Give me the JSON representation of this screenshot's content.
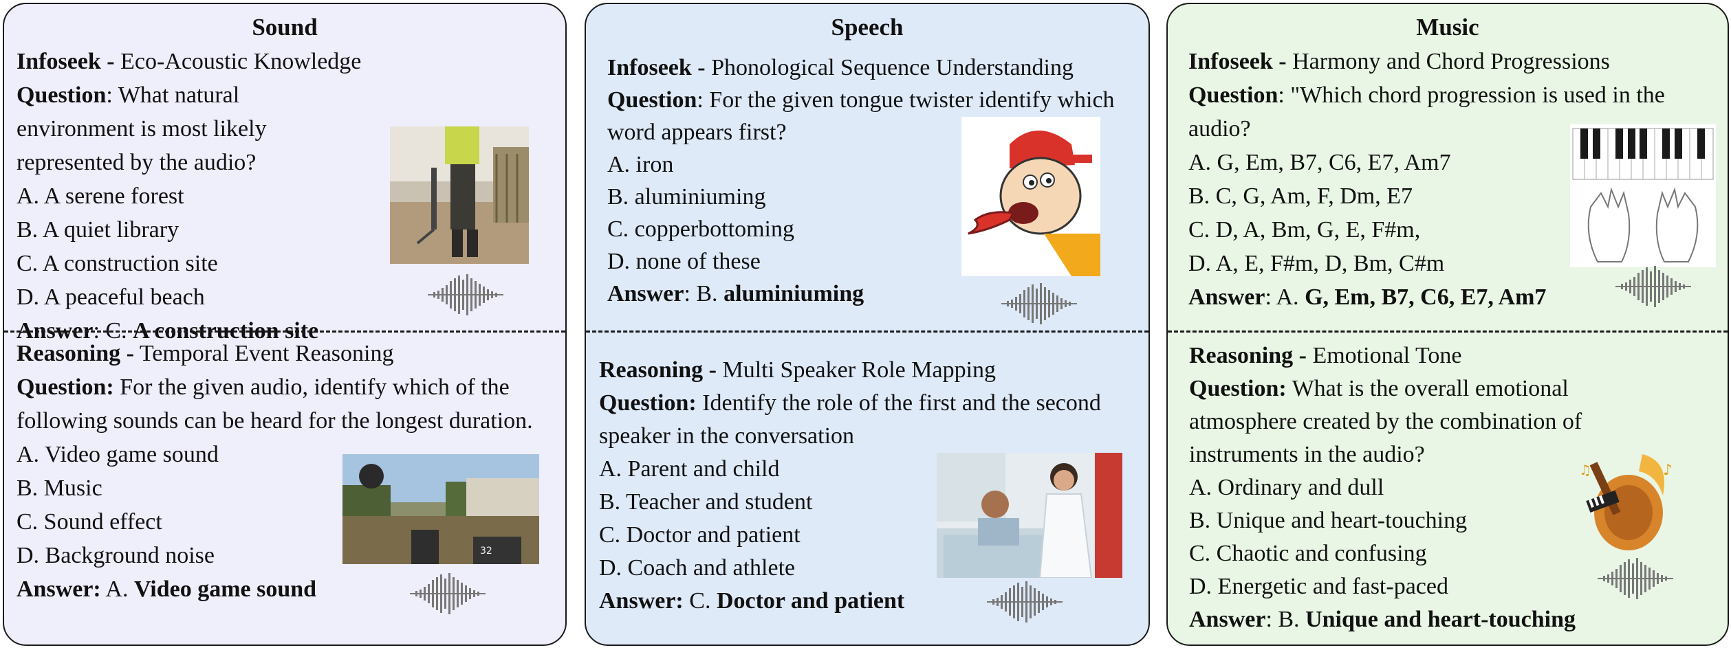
{
  "panels": [
    {
      "title": "Sound",
      "top": {
        "category": "Infoseek -",
        "subtitle": " Eco-Acoustic Knowledge",
        "question_label": "Question",
        "question_text": ": What natural environment is most likely represented by the audio?",
        "options": [
          "A. A serene forest",
          "B. A quiet library",
          "C. A construction site",
          "D. A peaceful beach"
        ],
        "answer_label": "Answer",
        "answer_prefix": ": C. ",
        "answer_value": "A construction site",
        "image": "construction-worker-jackhammer-photo"
      },
      "bottom": {
        "category": "Reasoning -",
        "subtitle": " Temporal Event Reasoning",
        "question_label": "Question:",
        "question_text": " For the given audio, identify which of the following sounds can be heard for the longest duration.",
        "options": [
          "A. Video game sound",
          "B. Music",
          "C. Sound effect",
          "D. Background noise"
        ],
        "answer_label": "Answer:",
        "answer_prefix": " A. ",
        "answer_value": "Video game sound",
        "image": "video-game-screenshot"
      }
    },
    {
      "title": "Speech",
      "top": {
        "category": "Infoseek -",
        "subtitle": " Phonological Sequence Understanding",
        "question_label": "Question",
        "question_text": ": For the given tongue twister identify which word appears first?",
        "options": [
          "A. iron",
          "B. aluminiuming",
          "C. copperbottoming",
          "D. none of these"
        ],
        "answer_label": "Answer",
        "answer_prefix": ": B. ",
        "answer_value": "aluminiuming",
        "image": "cartoon-tongue-twister"
      },
      "bottom": {
        "category": "Reasoning -",
        "subtitle": " Multi Speaker Role Mapping",
        "question_label": "Question:",
        "question_text": " Identify the role of the first and the second speaker in the conversation",
        "options": [
          "A. Parent and child",
          "B. Teacher and student",
          "C. Doctor and patient",
          "D. Coach and athlete"
        ],
        "answer_label": "Answer:",
        "answer_prefix": " C. ",
        "answer_value": "Doctor and patient",
        "image": "doctor-patient-photo"
      }
    },
    {
      "title": "Music",
      "top": {
        "category": "Infoseek -",
        "subtitle": " Harmony and Chord Progressions",
        "question_label": "Question",
        "question_text": ": \"Which chord progression is used in the audio?",
        "options": [
          "A. G, Em, B7, C6, E7, Am7",
          "B. C, G, Am, F, Dm, E7",
          "C. D, A, Bm, G, E, F#m,",
          "D. A, E, F#m, D, Bm, C#m"
        ],
        "answer_label": "Answer",
        "answer_prefix": ": A. ",
        "answer_value": "G, Em, B7, C6, E7, Am7",
        "image": "piano-keyboard-hands-diagram"
      },
      "bottom": {
        "category": "Reasoning -",
        "subtitle": " Emotional Tone",
        "question_label": "Question:",
        "question_text": " What is the overall emotional atmosphere created by the combination of instruments in the audio?",
        "options": [
          "A. Ordinary and dull",
          "B. Unique and heart-touching",
          "C. Chaotic and confusing",
          "D. Energetic and fast-paced"
        ],
        "answer_label": "Answer",
        "answer_prefix": ": B. ",
        "answer_value": "Unique and heart-touching",
        "image": "instruments-illustration"
      }
    }
  ],
  "icons": {
    "waveform": "audio-waveform-icon"
  }
}
